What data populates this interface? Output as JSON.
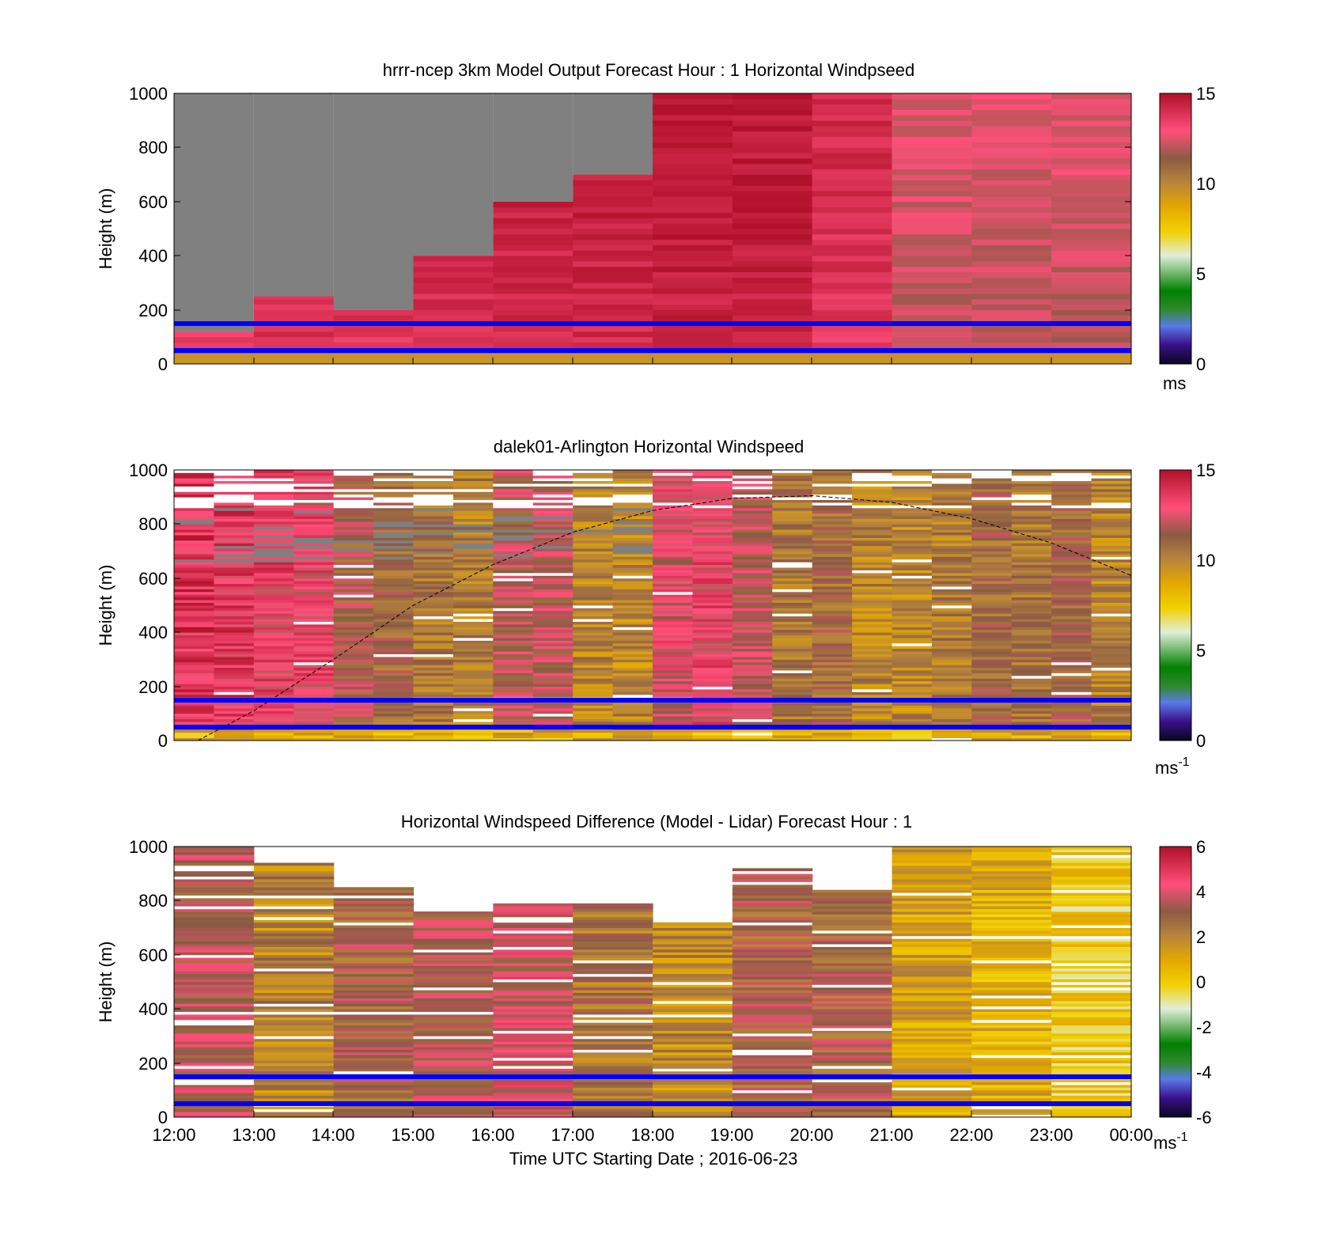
{
  "figure": {
    "xlabel": "Time UTC  Starting Date ; 2016-06-23",
    "x_tick_labels": [
      "12:00",
      "13:00",
      "14:00",
      "15:00",
      "16:00",
      "17:00",
      "18:00",
      "19:00",
      "20:00",
      "21:00",
      "22:00",
      "23:00",
      "00:00"
    ]
  },
  "chart_data": [
    {
      "type": "heatmap",
      "title": "hrrr-ncep 3km Model Output   Forecast Hour : 1 Horizontal Windpseed",
      "ylabel": "Height (m)",
      "ylim": [
        0,
        1000
      ],
      "y_ticks": [
        "0",
        "200",
        "400",
        "600",
        "800",
        "1000"
      ],
      "colorbar": {
        "ticks": [
          "0",
          "5",
          "10",
          "15"
        ],
        "range": [
          0,
          15
        ],
        "unit": "ms"
      },
      "reference_lines_m": [
        50,
        150
      ],
      "x_hours_utc": [
        12,
        13,
        14,
        15,
        16,
        17,
        18,
        19,
        20,
        21,
        22,
        23
      ],
      "model_top_m": [
        120,
        250,
        200,
        400,
        600,
        700,
        1000,
        1000,
        1000,
        1000,
        1000,
        1000
      ],
      "mean_speed_ms": [
        13.5,
        13.8,
        13.7,
        13.8,
        14.0,
        14.1,
        14.3,
        14.2,
        13.6,
        12.0,
        12.0,
        12.0
      ]
    },
    {
      "type": "heatmap",
      "title": "dalek01-Arlington  Horizontal Windspeed",
      "ylabel": "Height (m)",
      "ylim": [
        0,
        1000
      ],
      "y_ticks": [
        "0",
        "200",
        "400",
        "600",
        "800",
        "1000"
      ],
      "colorbar": {
        "ticks": [
          "0",
          "5",
          "10",
          "15"
        ],
        "range": [
          0,
          15
        ],
        "unit": "ms",
        "unit_exp": "-1"
      },
      "reference_lines_m": [
        50,
        150
      ],
      "boundary_layer_curve": [
        [
          12.3,
          0
        ],
        [
          13,
          110
        ],
        [
          14,
          300
        ],
        [
          15,
          500
        ],
        [
          16,
          650
        ],
        [
          17,
          770
        ],
        [
          18,
          850
        ],
        [
          19,
          895
        ],
        [
          20,
          905
        ],
        [
          21,
          880
        ],
        [
          22,
          820
        ],
        [
          23,
          730
        ],
        [
          24,
          610
        ]
      ],
      "x_column_times_utc": [
        12.25,
        12.75,
        13.25,
        13.75,
        14.25,
        14.75,
        15.25,
        15.75,
        16.25,
        16.75,
        17.25,
        17.75,
        18.25,
        18.75,
        19.25,
        19.75,
        20.25,
        20.75,
        21.25,
        21.75,
        22.25,
        22.75,
        23.25,
        23.75
      ],
      "mean_speed_ms": [
        13.8,
        13.5,
        13.2,
        13.0,
        11.5,
        11.0,
        10.5,
        10.2,
        11.8,
        12.0,
        10.0,
        9.8,
        12.5,
        13.0,
        12.0,
        10.5,
        11.0,
        10.0,
        9.8,
        10.2,
        11.0,
        10.5,
        11.2,
        10.0
      ]
    },
    {
      "type": "heatmap",
      "title": "Horizontal Windspeed Difference (Model - Lidar) Forecast Hour : 1",
      "ylabel": "Height (m)",
      "ylim": [
        0,
        1000
      ],
      "y_ticks": [
        "0",
        "200",
        "400",
        "600",
        "800",
        "1000"
      ],
      "colorbar": {
        "ticks": [
          "-6",
          "-4",
          "-2",
          "0",
          "2",
          "4",
          "6"
        ],
        "range": [
          -6,
          6
        ],
        "unit": "ms",
        "unit_exp": "-1"
      },
      "reference_lines_m": [
        50,
        150
      ],
      "x_hours_utc": [
        12,
        13,
        14,
        15,
        16,
        17,
        18,
        19,
        20,
        21,
        22,
        23
      ],
      "data_top_m": [
        1000,
        940,
        850,
        760,
        790,
        790,
        720,
        920,
        840,
        1000,
        1000,
        1000
      ],
      "mean_difference_ms": [
        3.5,
        2.0,
        3.0,
        3.5,
        3.8,
        2.5,
        1.8,
        3.0,
        3.0,
        1.2,
        0.8,
        0.0
      ]
    }
  ],
  "colors": {
    "reference_line": "#0000ff",
    "missing_above_data": "#808080"
  }
}
